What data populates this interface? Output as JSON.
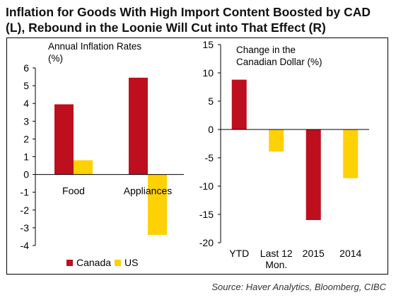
{
  "title": "Inflation for Goods With High Import Content Boosted by CAD (L), Rebound in the Loonie Will Cut into That Effect (R)",
  "source": "Source: Haver Analytics, Bloomberg, CIBC",
  "colors": {
    "canada": "#BE0F1E",
    "us": "#FDD103"
  },
  "chart_data": [
    {
      "type": "bar",
      "title": "Annual Inflation Rates (%)",
      "title_lines": [
        "Annual Inflation Rates",
        "(%)"
      ],
      "categories": [
        "Food",
        "Appliances"
      ],
      "series": [
        {
          "name": "Canada",
          "values": [
            3.95,
            5.45
          ]
        },
        {
          "name": "US",
          "values": [
            0.8,
            -3.4
          ]
        }
      ],
      "ylim": [
        -4,
        6
      ],
      "yticks": [
        -4,
        -3,
        -2,
        -1,
        0,
        1,
        2,
        3,
        4,
        5,
        6
      ],
      "legend": "bottom-left"
    },
    {
      "type": "bar",
      "title": "Change in the Canadian Dollar (%)",
      "title_lines": [
        "Change in the",
        "Canadian Dollar (%)"
      ],
      "categories": [
        "YTD",
        "Last 12 Mon.",
        "2015",
        "2014"
      ],
      "category_lines": [
        [
          "YTD"
        ],
        [
          "Last 12",
          "Mon."
        ],
        [
          "2015"
        ],
        [
          "2014"
        ]
      ],
      "values": [
        8.8,
        -3.9,
        -16.0,
        -8.6
      ],
      "bar_series": [
        "Canada",
        "US",
        "Canada",
        "US"
      ],
      "ylim": [
        -20,
        15
      ],
      "yticks": [
        -20,
        -15,
        -10,
        -5,
        0,
        5,
        10,
        15
      ]
    }
  ]
}
